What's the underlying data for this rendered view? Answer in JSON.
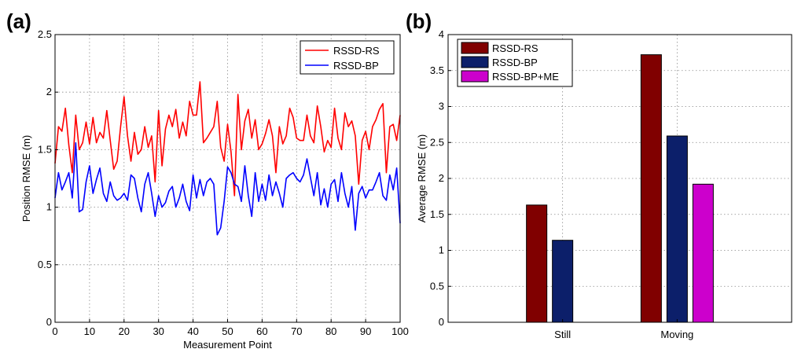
{
  "panels": {
    "a": {
      "label": "(a)"
    },
    "b": {
      "label": "(b)"
    }
  },
  "chart_data": [
    {
      "type": "line",
      "panel": "(a)",
      "xlabel": "Measurement Point",
      "ylabel": "Position RMSE (m)",
      "xlim": [
        0,
        100
      ],
      "ylim": [
        0,
        2.5
      ],
      "xticks": [
        0,
        10,
        20,
        30,
        40,
        50,
        60,
        70,
        80,
        90,
        100
      ],
      "yticks": [
        0,
        0.5,
        1,
        1.5,
        2,
        2.5
      ],
      "ytick_labels": [
        "0",
        "0.5",
        "1",
        "1.5",
        "2",
        "2.5"
      ],
      "grid": true,
      "legend_position": "top-right",
      "series": [
        {
          "name": "RSSD-RS",
          "color": "#ff0000",
          "values": [
            1.38,
            1.7,
            1.66,
            1.86,
            1.54,
            1.3,
            1.8,
            1.5,
            1.56,
            1.74,
            1.55,
            1.78,
            1.56,
            1.65,
            1.6,
            1.84,
            1.58,
            1.33,
            1.4,
            1.7,
            1.96,
            1.62,
            1.4,
            1.65,
            1.46,
            1.5,
            1.7,
            1.52,
            1.62,
            1.22,
            1.84,
            1.36,
            1.68,
            1.8,
            1.7,
            1.85,
            1.6,
            1.74,
            1.62,
            1.92,
            1.8,
            1.8,
            2.09,
            1.56,
            1.6,
            1.65,
            1.7,
            1.92,
            1.52,
            1.4,
            1.72,
            1.48,
            1.1,
            1.98,
            1.5,
            1.75,
            1.85,
            1.6,
            1.76,
            1.5,
            1.55,
            1.64,
            1.76,
            1.62,
            1.3,
            1.7,
            1.55,
            1.62,
            1.86,
            1.78,
            1.6,
            1.58,
            1.58,
            1.8,
            1.62,
            1.56,
            1.88,
            1.7,
            1.48,
            1.58,
            1.52,
            1.86,
            1.6,
            1.5,
            1.82,
            1.7,
            1.75,
            1.62,
            1.2,
            1.58,
            1.66,
            1.5,
            1.7,
            1.76,
            1.85,
            1.9,
            1.3,
            1.7,
            1.72,
            1.58,
            1.8
          ]
        },
        {
          "name": "RSSD-BP",
          "color": "#0000ff",
          "values": [
            1.08,
            1.3,
            1.15,
            1.22,
            1.3,
            1.08,
            1.56,
            0.96,
            0.98,
            1.22,
            1.36,
            1.12,
            1.24,
            1.34,
            1.12,
            1.05,
            1.22,
            1.1,
            1.06,
            1.08,
            1.12,
            1.06,
            1.28,
            1.25,
            1.08,
            0.96,
            1.2,
            1.3,
            1.12,
            0.92,
            1.1,
            1.0,
            1.04,
            1.14,
            1.18,
            1.0,
            1.08,
            1.2,
            1.05,
            0.97,
            1.28,
            1.08,
            1.24,
            1.1,
            1.22,
            1.25,
            1.2,
            0.76,
            0.82,
            1.05,
            1.35,
            1.3,
            1.2,
            1.18,
            1.05,
            1.36,
            1.1,
            0.92,
            1.3,
            1.05,
            1.2,
            1.06,
            1.28,
            1.1,
            1.22,
            1.12,
            1.0,
            1.25,
            1.28,
            1.3,
            1.25,
            1.22,
            1.28,
            1.42,
            1.26,
            1.1,
            1.3,
            1.02,
            1.16,
            1.0,
            1.2,
            1.24,
            1.05,
            1.3,
            1.12,
            1.0,
            1.18,
            0.8,
            1.12,
            1.18,
            1.08,
            1.15,
            1.15,
            1.22,
            1.3,
            1.1,
            1.06,
            1.28,
            1.15,
            1.34,
            0.86
          ]
        }
      ]
    },
    {
      "type": "bar",
      "panel": "(b)",
      "xlabel": "",
      "ylabel": "Average RMSE (m)",
      "categories": [
        "Still",
        "Moving"
      ],
      "ylim": [
        0,
        4
      ],
      "yticks": [
        0,
        0.5,
        1,
        1.5,
        2,
        2.5,
        3,
        3.5,
        4
      ],
      "ytick_labels": [
        "0",
        "0.5",
        "1",
        "1.5",
        "2",
        "2.5",
        "3",
        "3.5",
        "4"
      ],
      "grid": true,
      "legend_position": "top-left",
      "series": [
        {
          "name": "RSSD-RS",
          "color": "#800000",
          "values": [
            1.63,
            3.72
          ]
        },
        {
          "name": "RSSD-BP",
          "color": "#0c1f6a",
          "values": [
            1.14,
            2.59
          ]
        },
        {
          "name": "RSSD-BP+ME",
          "color": "#cc00cc",
          "values": [
            null,
            1.92
          ]
        }
      ]
    }
  ]
}
